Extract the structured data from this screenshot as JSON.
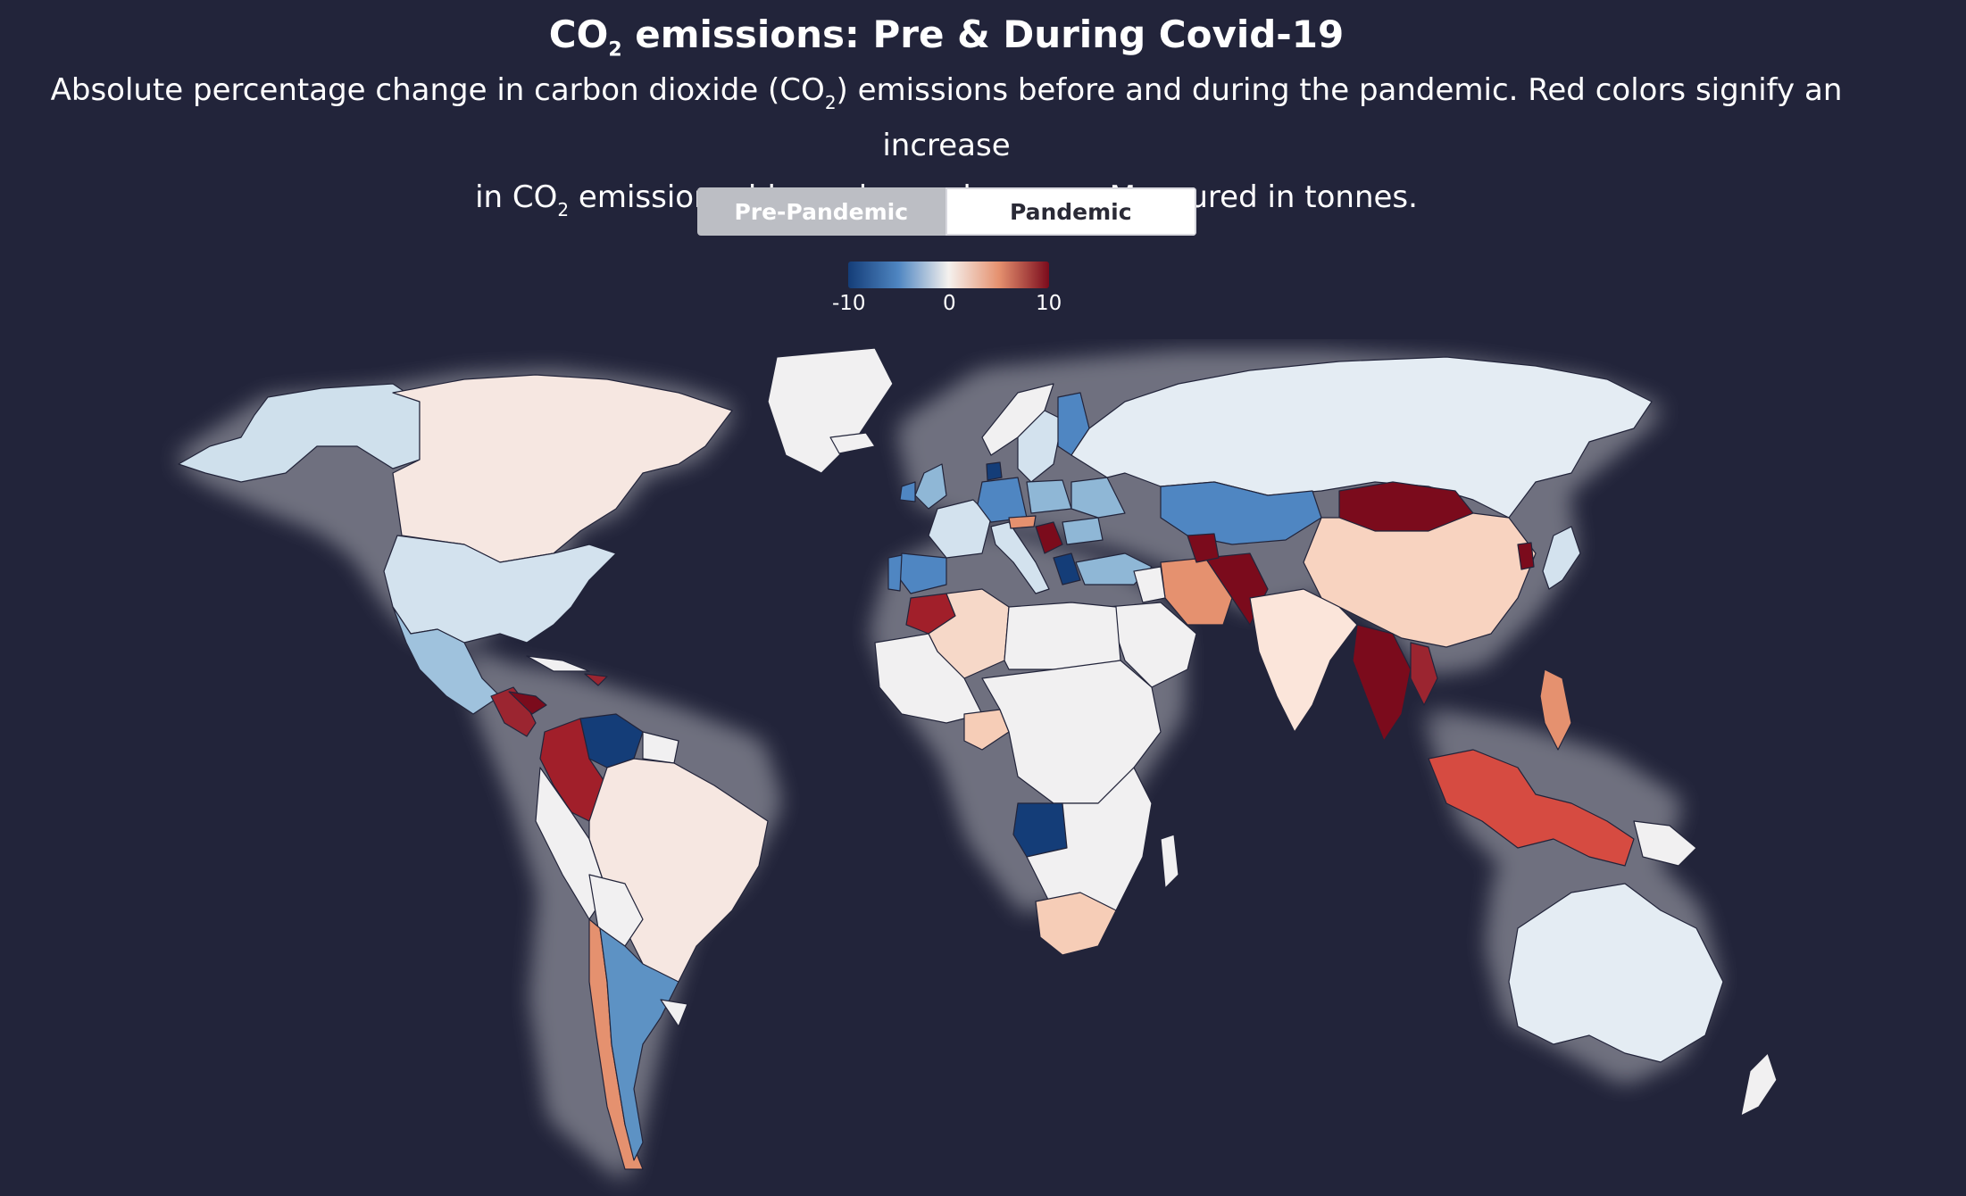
{
  "header": {
    "title_pre": "CO",
    "title_sub": "2",
    "title_post": " emissions: Pre & During Covid-19",
    "sub_line1_a": "Absolute percentage change in carbon dioxide (CO",
    "sub_line1_sub": "2",
    "sub_line1_b": ") emissions before and during the pandemic. Red colors signify an increase",
    "sub_line2_a": "in CO",
    "sub_line2_sub": "2",
    "sub_line2_b": " emissions, blue colors a decrease. Measured in tonnes."
  },
  "toggle": {
    "pre_label": "Pre-Pandemic",
    "pandemic_label": "Pandemic",
    "active": "Pandemic"
  },
  "legend": {
    "min_label": "-10",
    "mid_label": "0",
    "max_label": "10",
    "colors": [
      "#143d78",
      "#4f86c2",
      "#f5f1ee",
      "#e5916f",
      "#7b0b1c"
    ]
  },
  "map": {
    "background": "#22243a",
    "land_default": "#f1f0f1",
    "glow": "#ffffff"
  }
}
